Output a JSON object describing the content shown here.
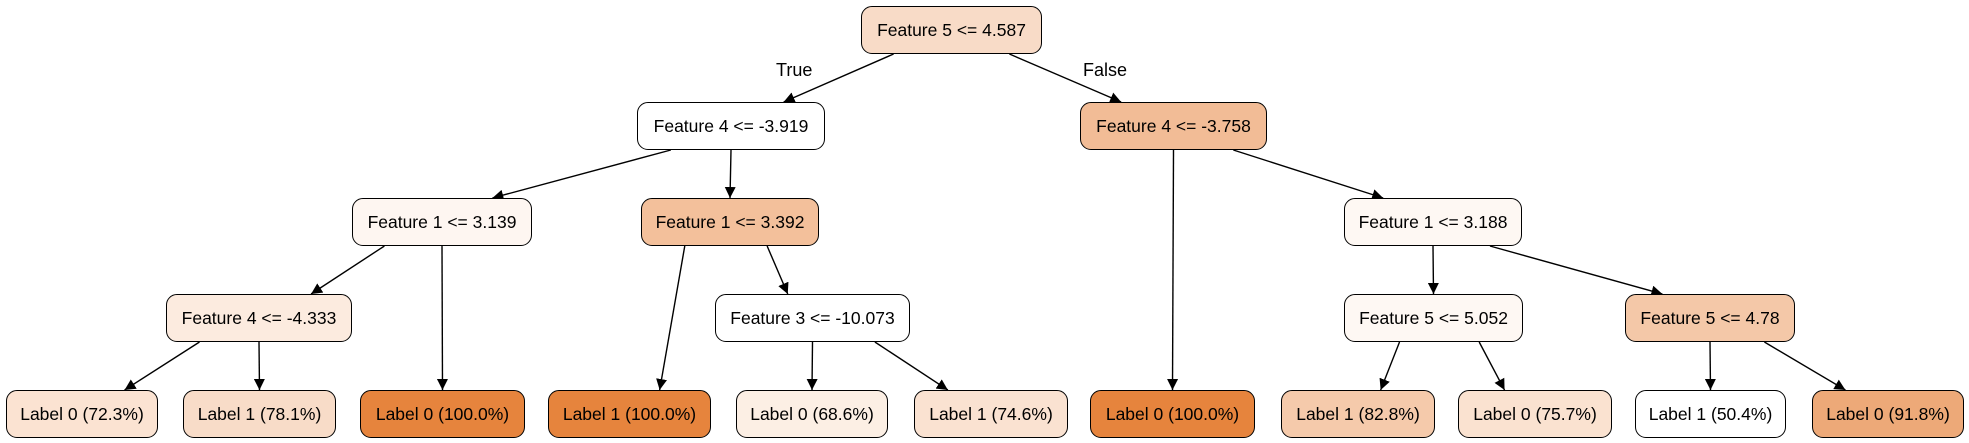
{
  "edge_labels": {
    "true_label": "True",
    "false_label": "False"
  },
  "nodes": [
    {
      "id": "n0",
      "label": "Feature 5 <= 4.587",
      "fill": "#f8dbc7"
    },
    {
      "id": "n1",
      "label": "Feature 4 <= -3.919",
      "fill": "#ffffff"
    },
    {
      "id": "n2",
      "label": "Feature 4 <= -3.758",
      "fill": "#f2bc96"
    },
    {
      "id": "n3",
      "label": "Feature 1 <= 3.139",
      "fill": "#fef6f1"
    },
    {
      "id": "n4",
      "label": "Feature 1 <= 3.392",
      "fill": "#f3c09b"
    },
    {
      "id": "n5",
      "label": "Feature 1 <= 3.188",
      "fill": "#fef8f3"
    },
    {
      "id": "n6",
      "label": "Feature 4 <= -4.333",
      "fill": "#fcebdf"
    },
    {
      "id": "n7",
      "label": "Label 0 (100.0%)",
      "fill": "#e6843d"
    },
    {
      "id": "n8",
      "label": "Label 1 (100.0%)",
      "fill": "#e6843d"
    },
    {
      "id": "n9",
      "label": "Feature 3 <= -10.073",
      "fill": "#ffffff"
    },
    {
      "id": "n10",
      "label": "Label 0 (100.0%)",
      "fill": "#e6843d"
    },
    {
      "id": "n11",
      "label": "Feature 5 <= 5.052",
      "fill": "#fef8f3"
    },
    {
      "id": "n12",
      "label": "Feature 5 <= 4.78",
      "fill": "#f4c8a8"
    },
    {
      "id": "n13",
      "label": "Label 0 (72.3%)",
      "fill": "#fbe3d2"
    },
    {
      "id": "n14",
      "label": "Label 1 (78.1%)",
      "fill": "#f8dcc8"
    },
    {
      "id": "n15",
      "label": "Label 0 (68.6%)",
      "fill": "#fcefe4"
    },
    {
      "id": "n16",
      "label": "Label 1 (74.6%)",
      "fill": "#fae2d1"
    },
    {
      "id": "n17",
      "label": "Label 1 (82.8%)",
      "fill": "#f5caab"
    },
    {
      "id": "n18",
      "label": "Label 0 (75.7%)",
      "fill": "#fae2d0"
    },
    {
      "id": "n19",
      "label": "Label 1 (50.4%)",
      "fill": "#ffffff"
    },
    {
      "id": "n20",
      "label": "Label 0 (91.8%)",
      "fill": "#eda978"
    }
  ],
  "edges": [
    [
      "n0",
      "n1"
    ],
    [
      "n0",
      "n2"
    ],
    [
      "n1",
      "n3"
    ],
    [
      "n1",
      "n4"
    ],
    [
      "n2",
      "n10"
    ],
    [
      "n2",
      "n5"
    ],
    [
      "n3",
      "n6"
    ],
    [
      "n3",
      "n7"
    ],
    [
      "n4",
      "n8"
    ],
    [
      "n4",
      "n9"
    ],
    [
      "n5",
      "n11"
    ],
    [
      "n5",
      "n12"
    ],
    [
      "n6",
      "n13"
    ],
    [
      "n6",
      "n14"
    ],
    [
      "n9",
      "n15"
    ],
    [
      "n9",
      "n16"
    ],
    [
      "n11",
      "n17"
    ],
    [
      "n11",
      "n18"
    ],
    [
      "n12",
      "n19"
    ],
    [
      "n12",
      "n20"
    ]
  ]
}
